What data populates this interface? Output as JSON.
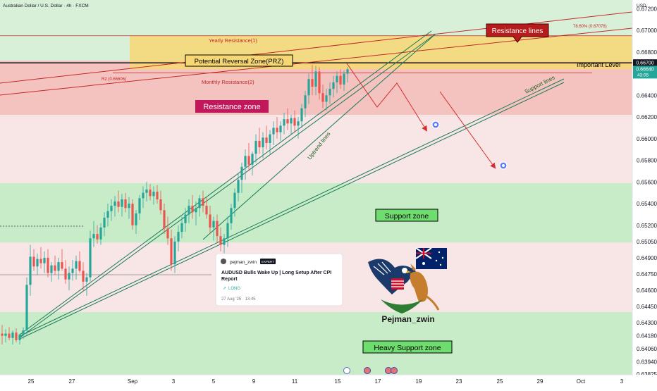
{
  "header": {
    "symbol_title": "Australian Dollar / U.S. Dollar · 4h · FXCM",
    "currency": "USD"
  },
  "price_axis": {
    "ticks": [
      "0.67200",
      "0.67000",
      "0.66800",
      "0.66400",
      "0.66200",
      "0.66000",
      "0.65800",
      "0.65600",
      "0.65400",
      "0.65200",
      "0.65050",
      "0.64900",
      "0.64750",
      "0.64600",
      "0.64450",
      "0.64300",
      "0.64180",
      "0.64060",
      "0.63940",
      "0.63825"
    ],
    "important_level_label": "0.66700",
    "last_price_label": "0.66640",
    "countdown_label": "43:05"
  },
  "time_axis": {
    "labels": [
      "25",
      "27",
      "Sep",
      "3",
      "5",
      "9",
      "11",
      "15",
      "17",
      "19",
      "23",
      "25",
      "29",
      "Oct",
      "3"
    ]
  },
  "annotations": {
    "resistance_lines": "Resistance lines",
    "yearly_resistance": "Yearly Resistance(1)",
    "fib_label": "78.60% (0.67078)",
    "prz": "Potential Reversal Zone(PRZ)",
    "important_level": "Important Level",
    "r2_label": "R2 (0.66606)",
    "monthly_resistance": "Monthly Resistance(2)",
    "resistance_zone": "Resistance zone",
    "support_lines": "Support lines",
    "uptrend_lines": "Uptrend lines",
    "support_zone": "Support zone",
    "heavy_support_zone": "Heavy Support zone",
    "author": "Pejman_zwin"
  },
  "idea_card": {
    "author": "pejman_zwin",
    "badge": "EXPERT",
    "title": "AUDUSD Bulls Wake Up | Long Setup After CPI Report",
    "direction": "LONG",
    "date": "27 Aug '25 · 13:45"
  },
  "colors": {
    "bull": "#26a69a",
    "bear": "#ef5350",
    "resistance_zone": "#f2b8b5",
    "support_zone": "#c8ebc8",
    "prz": "#f7d774",
    "label_red": "#c2185b",
    "label_green": "#6fdc6f",
    "arrow": "#d32f2f",
    "trendline": "#1b7a5a"
  },
  "chart_data": {
    "type": "candlestick",
    "symbol": "AUDUSD",
    "timeframe": "4h",
    "y_range": [
      0.6382,
      0.6728
    ],
    "zones": {
      "resistance_zone": [
        0.6622,
        0.6672
      ],
      "prz": [
        0.6664,
        0.6695
      ],
      "support_zone": [
        0.6504,
        0.6559
      ],
      "heavy_support_zone": [
        0.638,
        0.644
      ]
    },
    "levels": {
      "important_level": 0.667,
      "yearly_resistance": 0.6695,
      "fib_78_6": 0.67078,
      "r2_monthly_resistance": 0.66606
    },
    "ohlc": [
      [
        0.642,
        0.6428,
        0.641,
        0.6418
      ],
      [
        0.6418,
        0.6424,
        0.6412,
        0.642
      ],
      [
        0.642,
        0.6426,
        0.6414,
        0.6416
      ],
      [
        0.6416,
        0.6423,
        0.641,
        0.6421
      ],
      [
        0.6421,
        0.6425,
        0.6412,
        0.6414
      ],
      [
        0.6414,
        0.642,
        0.641,
        0.6419
      ],
      [
        0.6419,
        0.6426,
        0.6415,
        0.6423
      ],
      [
        0.6423,
        0.6472,
        0.6419,
        0.6465
      ],
      [
        0.6465,
        0.6502,
        0.6455,
        0.6491
      ],
      [
        0.6491,
        0.6498,
        0.6478,
        0.6482
      ],
      [
        0.6482,
        0.6494,
        0.6474,
        0.6489
      ],
      [
        0.6489,
        0.65,
        0.648,
        0.6485
      ],
      [
        0.6485,
        0.6496,
        0.6476,
        0.649
      ],
      [
        0.649,
        0.6498,
        0.6472,
        0.6476
      ],
      [
        0.6476,
        0.6486,
        0.6468,
        0.6483
      ],
      [
        0.6483,
        0.6492,
        0.6474,
        0.6478
      ],
      [
        0.6478,
        0.649,
        0.647,
        0.6486
      ],
      [
        0.6486,
        0.6498,
        0.6478,
        0.648
      ],
      [
        0.648,
        0.6488,
        0.6466,
        0.647
      ],
      [
        0.647,
        0.6482,
        0.646,
        0.6476
      ],
      [
        0.6476,
        0.6488,
        0.6469,
        0.648
      ],
      [
        0.648,
        0.6492,
        0.647,
        0.6487
      ],
      [
        0.6487,
        0.6496,
        0.6476,
        0.6478
      ],
      [
        0.6478,
        0.6486,
        0.646,
        0.6468
      ],
      [
        0.6468,
        0.6476,
        0.6455,
        0.6472
      ],
      [
        0.6472,
        0.6515,
        0.6468,
        0.6508
      ],
      [
        0.6508,
        0.6524,
        0.65,
        0.6512
      ],
      [
        0.6512,
        0.652,
        0.6503,
        0.6507
      ],
      [
        0.6507,
        0.6522,
        0.6502,
        0.6518
      ],
      [
        0.6518,
        0.6532,
        0.651,
        0.6527
      ],
      [
        0.6527,
        0.654,
        0.6519,
        0.6533
      ],
      [
        0.6533,
        0.6544,
        0.6524,
        0.6538
      ],
      [
        0.6538,
        0.6547,
        0.6528,
        0.6542
      ],
      [
        0.6542,
        0.6552,
        0.6532,
        0.6537
      ],
      [
        0.6537,
        0.6549,
        0.6528,
        0.6544
      ],
      [
        0.6544,
        0.655,
        0.6532,
        0.6536
      ],
      [
        0.6536,
        0.6546,
        0.6526,
        0.654
      ],
      [
        0.654,
        0.6544,
        0.6516,
        0.652
      ],
      [
        0.652,
        0.6534,
        0.6512,
        0.6531
      ],
      [
        0.6531,
        0.6548,
        0.6525,
        0.6545
      ],
      [
        0.6545,
        0.6556,
        0.6536,
        0.655
      ],
      [
        0.655,
        0.656,
        0.6542,
        0.6553
      ],
      [
        0.6553,
        0.6558,
        0.6543,
        0.6547
      ],
      [
        0.6547,
        0.6556,
        0.6539,
        0.6551
      ],
      [
        0.6551,
        0.6557,
        0.654,
        0.6544
      ],
      [
        0.6544,
        0.6552,
        0.653,
        0.6534
      ],
      [
        0.6534,
        0.654,
        0.6512,
        0.6517
      ],
      [
        0.6517,
        0.6528,
        0.6502,
        0.6508
      ],
      [
        0.6508,
        0.6516,
        0.6478,
        0.6484
      ],
      [
        0.6484,
        0.651,
        0.6476,
        0.6505
      ],
      [
        0.6505,
        0.652,
        0.6496,
        0.6514
      ],
      [
        0.6514,
        0.6528,
        0.6508,
        0.6522
      ],
      [
        0.6522,
        0.6536,
        0.6514,
        0.653
      ],
      [
        0.653,
        0.6544,
        0.6522,
        0.6538
      ],
      [
        0.6538,
        0.6548,
        0.6526,
        0.6532
      ],
      [
        0.6532,
        0.6542,
        0.652,
        0.6536
      ],
      [
        0.6536,
        0.6548,
        0.6528,
        0.6545
      ],
      [
        0.6545,
        0.6552,
        0.6532,
        0.6538
      ],
      [
        0.6538,
        0.6546,
        0.6526,
        0.653
      ],
      [
        0.653,
        0.6538,
        0.6512,
        0.6518
      ],
      [
        0.6518,
        0.6528,
        0.6506,
        0.6524
      ],
      [
        0.6524,
        0.653,
        0.6504,
        0.651
      ],
      [
        0.651,
        0.6518,
        0.6496,
        0.6502
      ],
      [
        0.6502,
        0.6512,
        0.649,
        0.6508
      ],
      [
        0.6508,
        0.6528,
        0.65,
        0.6522
      ],
      [
        0.6522,
        0.654,
        0.6516,
        0.6536
      ],
      [
        0.6536,
        0.6554,
        0.6528,
        0.655
      ],
      [
        0.655,
        0.6568,
        0.6542,
        0.6562
      ],
      [
        0.6562,
        0.6578,
        0.655,
        0.6574
      ],
      [
        0.6574,
        0.659,
        0.6562,
        0.6584
      ],
      [
        0.6584,
        0.6596,
        0.657,
        0.6576
      ],
      [
        0.6576,
        0.6588,
        0.6566,
        0.6586
      ],
      [
        0.6586,
        0.6604,
        0.6578,
        0.6598
      ],
      [
        0.6598,
        0.661,
        0.6586,
        0.6592
      ],
      [
        0.6592,
        0.6606,
        0.6582,
        0.6601
      ],
      [
        0.6601,
        0.6612,
        0.659,
        0.6596
      ],
      [
        0.6596,
        0.6608,
        0.6586,
        0.6604
      ],
      [
        0.6604,
        0.6616,
        0.6594,
        0.661
      ],
      [
        0.661,
        0.662,
        0.66,
        0.6606
      ],
      [
        0.6606,
        0.6616,
        0.6598,
        0.6612
      ],
      [
        0.6612,
        0.6624,
        0.6604,
        0.6618
      ],
      [
        0.6618,
        0.6628,
        0.6608,
        0.6614
      ],
      [
        0.6614,
        0.6622,
        0.6604,
        0.6619
      ],
      [
        0.6619,
        0.6626,
        0.6606,
        0.6612
      ],
      [
        0.6612,
        0.662,
        0.66,
        0.6616
      ],
      [
        0.6616,
        0.6632,
        0.661,
        0.6628
      ],
      [
        0.6628,
        0.6644,
        0.662,
        0.664
      ],
      [
        0.664,
        0.666,
        0.6632,
        0.6655
      ],
      [
        0.6655,
        0.6668,
        0.664,
        0.6648
      ],
      [
        0.6648,
        0.6667,
        0.664,
        0.6662
      ],
      [
        0.6662,
        0.6666,
        0.6636,
        0.6642
      ],
      [
        0.6642,
        0.665,
        0.6628,
        0.6634
      ],
      [
        0.6634,
        0.6646,
        0.6626,
        0.664
      ],
      [
        0.664,
        0.6652,
        0.6632,
        0.6646
      ],
      [
        0.6646,
        0.6658,
        0.6638,
        0.6652
      ],
      [
        0.6652,
        0.6662,
        0.6642,
        0.6658
      ],
      [
        0.6658,
        0.6664,
        0.6646,
        0.665
      ],
      [
        0.665,
        0.6663,
        0.6644,
        0.666
      ],
      [
        0.666,
        0.6666,
        0.6652,
        0.6664
      ]
    ]
  }
}
